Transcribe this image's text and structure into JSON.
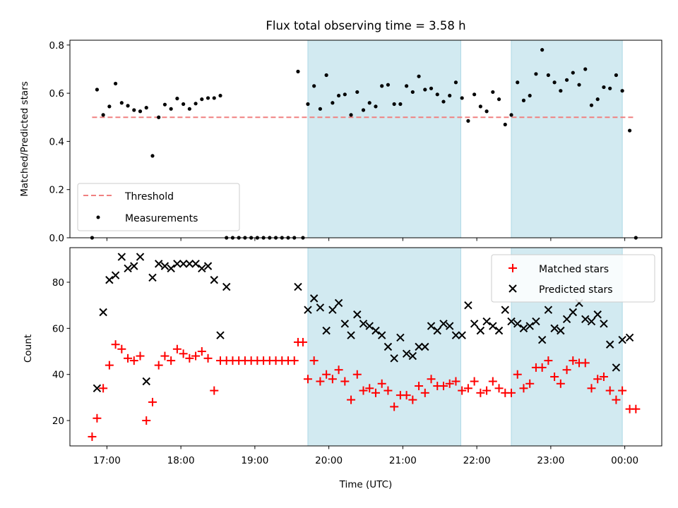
{
  "figure": {
    "title": "Flux total observing time = 3.58 h",
    "xlabel": "Time (UTC)",
    "x_ticks": [
      "17:00",
      "18:00",
      "19:00",
      "20:00",
      "21:00",
      "22:00",
      "23:00",
      "00:00"
    ]
  },
  "colors": {
    "threshold": "#f08080",
    "measurements": "#000000",
    "matched": "#ff0000",
    "predicted": "#000000",
    "shade": "#add8e6"
  },
  "chart_data": [
    {
      "type": "scatter",
      "title": "Flux total observing time = 3.58 h",
      "ylabel": "Matched/Predicted stars",
      "xlabel": "Time (UTC)",
      "x_unit": "hours UTC",
      "xlim": [
        "16:30",
        "24:30"
      ],
      "ylim": [
        0,
        0.82
      ],
      "y_ticks": [
        "0.0",
        "0.2",
        "0.4",
        "0.6",
        "0.8"
      ],
      "legend_position": "lower-left",
      "shaded_intervals": [
        [
          "19:43",
          "21:47"
        ],
        [
          "22:28",
          "23:58"
        ]
      ],
      "threshold": {
        "name": "Threshold",
        "y": 0.5,
        "x_range": [
          "16:48",
          "24:07"
        ],
        "style": "dashed"
      },
      "series": [
        {
          "name": "Measurements",
          "points": [
            [
              "16:48",
              0.0
            ],
            [
              "16:52",
              0.615
            ],
            [
              "16:57",
              0.51
            ],
            [
              "17:02",
              0.545
            ],
            [
              "17:07",
              0.64
            ],
            [
              "17:12",
              0.56
            ],
            [
              "17:17",
              0.548
            ],
            [
              "17:22",
              0.53
            ],
            [
              "17:27",
              0.525
            ],
            [
              "17:32",
              0.54
            ],
            [
              "17:37",
              0.34
            ],
            [
              "17:42",
              0.5
            ],
            [
              "17:47",
              0.553
            ],
            [
              "17:52",
              0.535
            ],
            [
              "17:57",
              0.578
            ],
            [
              "18:02",
              0.555
            ],
            [
              "18:07",
              0.535
            ],
            [
              "18:12",
              0.557
            ],
            [
              "18:17",
              0.575
            ],
            [
              "18:22",
              0.58
            ],
            [
              "18:27",
              0.58
            ],
            [
              "18:32",
              0.59
            ],
            [
              "18:37",
              0.0
            ],
            [
              "18:42",
              0.0
            ],
            [
              "18:47",
              0.0
            ],
            [
              "18:52",
              0.0
            ],
            [
              "18:57",
              0.0
            ],
            [
              "19:02",
              0.0
            ],
            [
              "19:07",
              0.0
            ],
            [
              "19:12",
              0.0
            ],
            [
              "19:17",
              0.0
            ],
            [
              "19:22",
              0.0
            ],
            [
              "19:27",
              0.0
            ],
            [
              "19:32",
              0.0
            ],
            [
              "19:35",
              0.69
            ],
            [
              "19:39",
              0.0
            ],
            [
              "19:43",
              0.555
            ],
            [
              "19:48",
              0.63
            ],
            [
              "19:53",
              0.535
            ],
            [
              "19:58",
              0.675
            ],
            [
              "20:03",
              0.56
            ],
            [
              "20:08",
              0.59
            ],
            [
              "20:13",
              0.595
            ],
            [
              "20:18",
              0.51
            ],
            [
              "20:23",
              0.605
            ],
            [
              "20:28",
              0.53
            ],
            [
              "20:33",
              0.56
            ],
            [
              "20:38",
              0.545
            ],
            [
              "20:43",
              0.63
            ],
            [
              "20:48",
              0.635
            ],
            [
              "20:53",
              0.555
            ],
            [
              "20:58",
              0.555
            ],
            [
              "21:03",
              0.63
            ],
            [
              "21:08",
              0.605
            ],
            [
              "21:13",
              0.67
            ],
            [
              "21:18",
              0.615
            ],
            [
              "21:23",
              0.62
            ],
            [
              "21:28",
              0.595
            ],
            [
              "21:33",
              0.565
            ],
            [
              "21:38",
              0.59
            ],
            [
              "21:43",
              0.645
            ],
            [
              "21:48",
              0.58
            ],
            [
              "21:53",
              0.485
            ],
            [
              "21:58",
              0.595
            ],
            [
              "22:03",
              0.545
            ],
            [
              "22:08",
              0.525
            ],
            [
              "22:13",
              0.605
            ],
            [
              "22:18",
              0.575
            ],
            [
              "22:23",
              0.47
            ],
            [
              "22:28",
              0.51
            ],
            [
              "22:33",
              0.645
            ],
            [
              "22:38",
              0.57
            ],
            [
              "22:43",
              0.59
            ],
            [
              "22:48",
              0.68
            ],
            [
              "22:53",
              0.78
            ],
            [
              "22:58",
              0.675
            ],
            [
              "23:03",
              0.645
            ],
            [
              "23:08",
              0.61
            ],
            [
              "23:13",
              0.655
            ],
            [
              "23:18",
              0.685
            ],
            [
              "23:23",
              0.635
            ],
            [
              "23:28",
              0.7
            ],
            [
              "23:33",
              0.55
            ],
            [
              "23:38",
              0.575
            ],
            [
              "23:43",
              0.625
            ],
            [
              "23:48",
              0.62
            ],
            [
              "23:53",
              0.675
            ],
            [
              "23:58",
              0.61
            ],
            [
              "24:04",
              0.445
            ],
            [
              "24:09",
              0.0
            ]
          ]
        }
      ]
    },
    {
      "type": "scatter",
      "ylabel": "Count",
      "xlabel": "Time (UTC)",
      "x_unit": "hours UTC",
      "xlim": [
        "16:30",
        "24:30"
      ],
      "ylim": [
        9,
        95
      ],
      "y_ticks": [
        "20",
        "40",
        "60",
        "80"
      ],
      "legend_position": "upper-right",
      "shaded_intervals": [
        [
          "19:43",
          "21:47"
        ],
        [
          "22:28",
          "23:58"
        ]
      ],
      "series": [
        {
          "name": "Matched stars",
          "marker": "plus",
          "points": [
            [
              "16:48",
              13
            ],
            [
              "16:52",
              21
            ],
            [
              "16:57",
              34
            ],
            [
              "17:02",
              44
            ],
            [
              "17:07",
              53
            ],
            [
              "17:12",
              51
            ],
            [
              "17:17",
              47
            ],
            [
              "17:22",
              46
            ],
            [
              "17:27",
              48
            ],
            [
              "17:32",
              20
            ],
            [
              "17:37",
              28
            ],
            [
              "17:42",
              44
            ],
            [
              "17:47",
              48
            ],
            [
              "17:52",
              46
            ],
            [
              "17:57",
              51
            ],
            [
              "18:02",
              49
            ],
            [
              "18:07",
              47
            ],
            [
              "18:12",
              48
            ],
            [
              "18:17",
              50
            ],
            [
              "18:22",
              47
            ],
            [
              "18:27",
              33
            ],
            [
              "18:32",
              46
            ],
            [
              "18:37",
              46
            ],
            [
              "18:42",
              46
            ],
            [
              "18:47",
              46
            ],
            [
              "18:52",
              46
            ],
            [
              "18:57",
              46
            ],
            [
              "19:02",
              46
            ],
            [
              "19:07",
              46
            ],
            [
              "19:12",
              46
            ],
            [
              "19:17",
              46
            ],
            [
              "19:22",
              46
            ],
            [
              "19:27",
              46
            ],
            [
              "19:32",
              46
            ],
            [
              "19:35",
              54
            ],
            [
              "19:39",
              54
            ],
            [
              "19:43",
              38
            ],
            [
              "19:48",
              46
            ],
            [
              "19:53",
              37
            ],
            [
              "19:58",
              40
            ],
            [
              "20:03",
              38
            ],
            [
              "20:08",
              42
            ],
            [
              "20:13",
              37
            ],
            [
              "20:18",
              29
            ],
            [
              "20:23",
              40
            ],
            [
              "20:28",
              33
            ],
            [
              "20:33",
              34
            ],
            [
              "20:38",
              32
            ],
            [
              "20:43",
              36
            ],
            [
              "20:48",
              33
            ],
            [
              "20:53",
              26
            ],
            [
              "20:58",
              31
            ],
            [
              "21:03",
              31
            ],
            [
              "21:08",
              29
            ],
            [
              "21:13",
              35
            ],
            [
              "21:18",
              32
            ],
            [
              "21:23",
              38
            ],
            [
              "21:28",
              35
            ],
            [
              "21:33",
              35
            ],
            [
              "21:38",
              36
            ],
            [
              "21:43",
              37
            ],
            [
              "21:48",
              33
            ],
            [
              "21:53",
              34
            ],
            [
              "21:58",
              37
            ],
            [
              "22:03",
              32
            ],
            [
              "22:08",
              33
            ],
            [
              "22:13",
              37
            ],
            [
              "22:18",
              34
            ],
            [
              "22:23",
              32
            ],
            [
              "22:28",
              32
            ],
            [
              "22:33",
              40
            ],
            [
              "22:38",
              34
            ],
            [
              "22:43",
              36
            ],
            [
              "22:48",
              43
            ],
            [
              "22:53",
              43
            ],
            [
              "22:58",
              46
            ],
            [
              "23:03",
              39
            ],
            [
              "23:08",
              36
            ],
            [
              "23:13",
              42
            ],
            [
              "23:18",
              46
            ],
            [
              "23:23",
              45
            ],
            [
              "23:28",
              45
            ],
            [
              "23:33",
              34
            ],
            [
              "23:38",
              38
            ],
            [
              "23:43",
              39
            ],
            [
              "23:48",
              33
            ],
            [
              "23:53",
              29
            ],
            [
              "23:58",
              33
            ],
            [
              "24:04",
              25
            ],
            [
              "24:09",
              25
            ]
          ]
        },
        {
          "name": "Predicted stars",
          "marker": "x",
          "points": [
            [
              "16:52",
              34
            ],
            [
              "16:57",
              67
            ],
            [
              "17:02",
              81
            ],
            [
              "17:07",
              83
            ],
            [
              "17:12",
              91
            ],
            [
              "17:17",
              86
            ],
            [
              "17:22",
              87
            ],
            [
              "17:27",
              91
            ],
            [
              "17:32",
              37
            ],
            [
              "17:37",
              82
            ],
            [
              "17:42",
              88
            ],
            [
              "17:47",
              87
            ],
            [
              "17:52",
              86
            ],
            [
              "17:57",
              88
            ],
            [
              "18:02",
              88
            ],
            [
              "18:07",
              88
            ],
            [
              "18:12",
              88
            ],
            [
              "18:17",
              86
            ],
            [
              "18:22",
              87
            ],
            [
              "18:27",
              81
            ],
            [
              "18:32",
              57
            ],
            [
              "18:37",
              78
            ],
            [
              "19:35",
              78
            ],
            [
              "19:43",
              68
            ],
            [
              "19:48",
              73
            ],
            [
              "19:53",
              69
            ],
            [
              "19:58",
              59
            ],
            [
              "20:03",
              68
            ],
            [
              "20:08",
              71
            ],
            [
              "20:13",
              62
            ],
            [
              "20:18",
              57
            ],
            [
              "20:23",
              66
            ],
            [
              "20:28",
              62
            ],
            [
              "20:33",
              61
            ],
            [
              "20:38",
              59
            ],
            [
              "20:43",
              57
            ],
            [
              "20:48",
              52
            ],
            [
              "20:53",
              47
            ],
            [
              "20:58",
              56
            ],
            [
              "21:03",
              49
            ],
            [
              "21:08",
              48
            ],
            [
              "21:13",
              52
            ],
            [
              "21:18",
              52
            ],
            [
              "21:23",
              61
            ],
            [
              "21:28",
              59
            ],
            [
              "21:33",
              62
            ],
            [
              "21:38",
              61
            ],
            [
              "21:43",
              57
            ],
            [
              "21:48",
              57
            ],
            [
              "21:53",
              70
            ],
            [
              "21:58",
              62
            ],
            [
              "22:03",
              59
            ],
            [
              "22:08",
              63
            ],
            [
              "22:13",
              61
            ],
            [
              "22:18",
              59
            ],
            [
              "22:23",
              68
            ],
            [
              "22:28",
              63
            ],
            [
              "22:33",
              62
            ],
            [
              "22:38",
              60
            ],
            [
              "22:43",
              61
            ],
            [
              "22:48",
              63
            ],
            [
              "22:53",
              55
            ],
            [
              "22:58",
              68
            ],
            [
              "23:03",
              60
            ],
            [
              "23:08",
              59
            ],
            [
              "23:13",
              64
            ],
            [
              "23:18",
              67
            ],
            [
              "23:23",
              71
            ],
            [
              "23:28",
              64
            ],
            [
              "23:33",
              63
            ],
            [
              "23:38",
              66
            ],
            [
              "23:43",
              62
            ],
            [
              "23:48",
              53
            ],
            [
              "23:53",
              43
            ],
            [
              "23:58",
              55
            ],
            [
              "24:04",
              56
            ]
          ]
        }
      ]
    }
  ]
}
